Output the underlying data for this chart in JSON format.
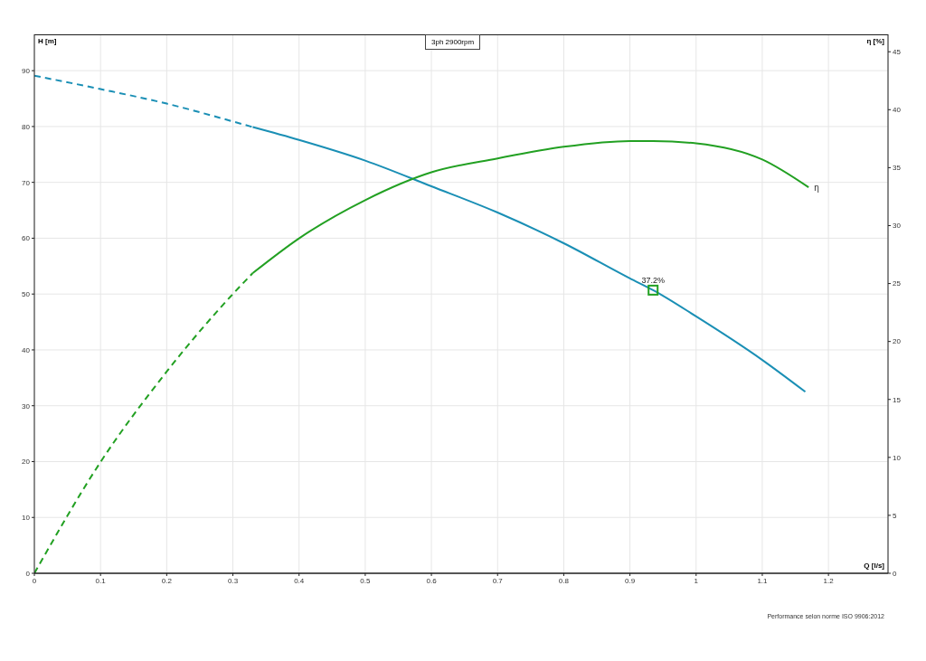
{
  "chart_data": {
    "type": "line",
    "title": "3ph 2900rpm",
    "xlabel": "Q [l/s]",
    "ylabel": "H [m]",
    "y2label": "η [%]",
    "annotations": [
      {
        "text": "37.2%",
        "x": 0.935,
        "y": 50.7
      },
      "Performance selon norme ISO 9906:2012"
    ],
    "xlim": [
      0,
      1.29
    ],
    "xticks": [
      0,
      0.1,
      0.2,
      0.3,
      0.4,
      0.5,
      0.6,
      0.7,
      0.8,
      0.9,
      1,
      1.1,
      1.2
    ],
    "ylim": [
      0,
      96.5
    ],
    "yticks": [
      0,
      10,
      20,
      30,
      40,
      50,
      60,
      70,
      80,
      90
    ],
    "y2lim": [
      0,
      46.5
    ],
    "y2ticks": [
      0,
      5,
      10,
      15,
      20,
      25,
      30,
      35,
      40,
      45
    ],
    "grid": true,
    "legend": false,
    "marker": "none",
    "series": [
      {
        "color": "#1a8fb5",
        "line_style": "dashed",
        "x": [
          0,
          0.1,
          0.2,
          0.3,
          0.33
        ],
        "values": [
          89.1,
          86.7,
          84.1,
          80.9,
          79.9
        ]
      },
      {
        "color": "#1a8fb5",
        "line_style": "solid",
        "x": [
          0.33,
          0.4,
          0.5,
          0.6,
          0.7,
          0.8,
          0.9,
          0.935,
          1.0,
          1.1,
          1.165
        ],
        "values": [
          79.9,
          77.6,
          73.9,
          69.3,
          64.6,
          59.1,
          52.8,
          50.7,
          46.0,
          38.2,
          32.5
        ]
      },
      {
        "color": "#22a022",
        "line_style": "dashed",
        "axis": "y2",
        "x": [
          0,
          0.1,
          0.2,
          0.3,
          0.33
        ],
        "values": [
          0,
          9.6,
          17.4,
          24.1,
          25.9
        ]
      },
      {
        "name": "η",
        "color": "#22a022",
        "line_style": "solid",
        "axis": "y2",
        "x": [
          0.33,
          0.4,
          0.5,
          0.6,
          0.7,
          0.8,
          0.9,
          0.935,
          1.0,
          1.1,
          1.17
        ],
        "values": [
          25.9,
          28.9,
          32.2,
          34.6,
          35.8,
          36.8,
          37.3,
          37.3,
          37.1,
          35.7,
          33.3
        ]
      },
      {
        "type": "scatter",
        "marker": "square",
        "color": "#22a022",
        "x": [
          0.935
        ],
        "values": [
          50.7
        ]
      }
    ]
  }
}
